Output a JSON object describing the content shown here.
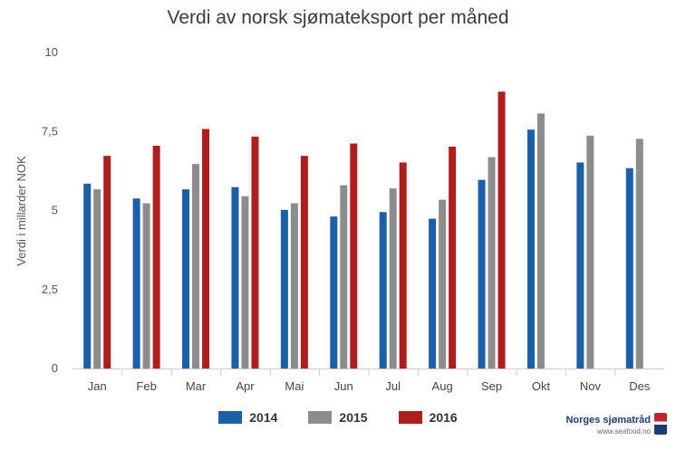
{
  "chart_data": {
    "type": "bar",
    "title": "Verdi av norsk sjømateksport per måned",
    "ylabel": "Verdi i millarder NOK",
    "xlabel": "",
    "ylim": [
      0,
      10
    ],
    "yticks": [
      0,
      2.5,
      5,
      7.5,
      10
    ],
    "ytick_labels": [
      "0",
      "2,5",
      "5",
      "7,5",
      "10"
    ],
    "categories": [
      "Jan",
      "Feb",
      "Mar",
      "Apr",
      "Mai",
      "Jun",
      "Jul",
      "Aug",
      "Sep",
      "Okt",
      "Nov",
      "Des"
    ],
    "series": [
      {
        "name": "2014",
        "color": "#1a5fa8",
        "values": [
          5.85,
          5.38,
          5.67,
          5.74,
          5.02,
          4.81,
          4.95,
          4.74,
          5.97,
          7.56,
          6.52,
          6.34
        ]
      },
      {
        "name": "2015",
        "color": "#8c8c8c",
        "values": [
          5.67,
          5.23,
          6.47,
          5.45,
          5.23,
          5.8,
          5.7,
          5.34,
          6.69,
          8.07,
          7.37,
          7.27
        ]
      },
      {
        "name": "2016",
        "color": "#b01d1d",
        "values": [
          6.73,
          7.05,
          7.58,
          7.34,
          6.73,
          7.12,
          6.52,
          7.02,
          8.76,
          null,
          null,
          null
        ]
      }
    ],
    "grid": false,
    "legend_position": "bottom"
  },
  "logo": {
    "name": "Norges sjømatråd",
    "url": "www.seafood.no"
  }
}
